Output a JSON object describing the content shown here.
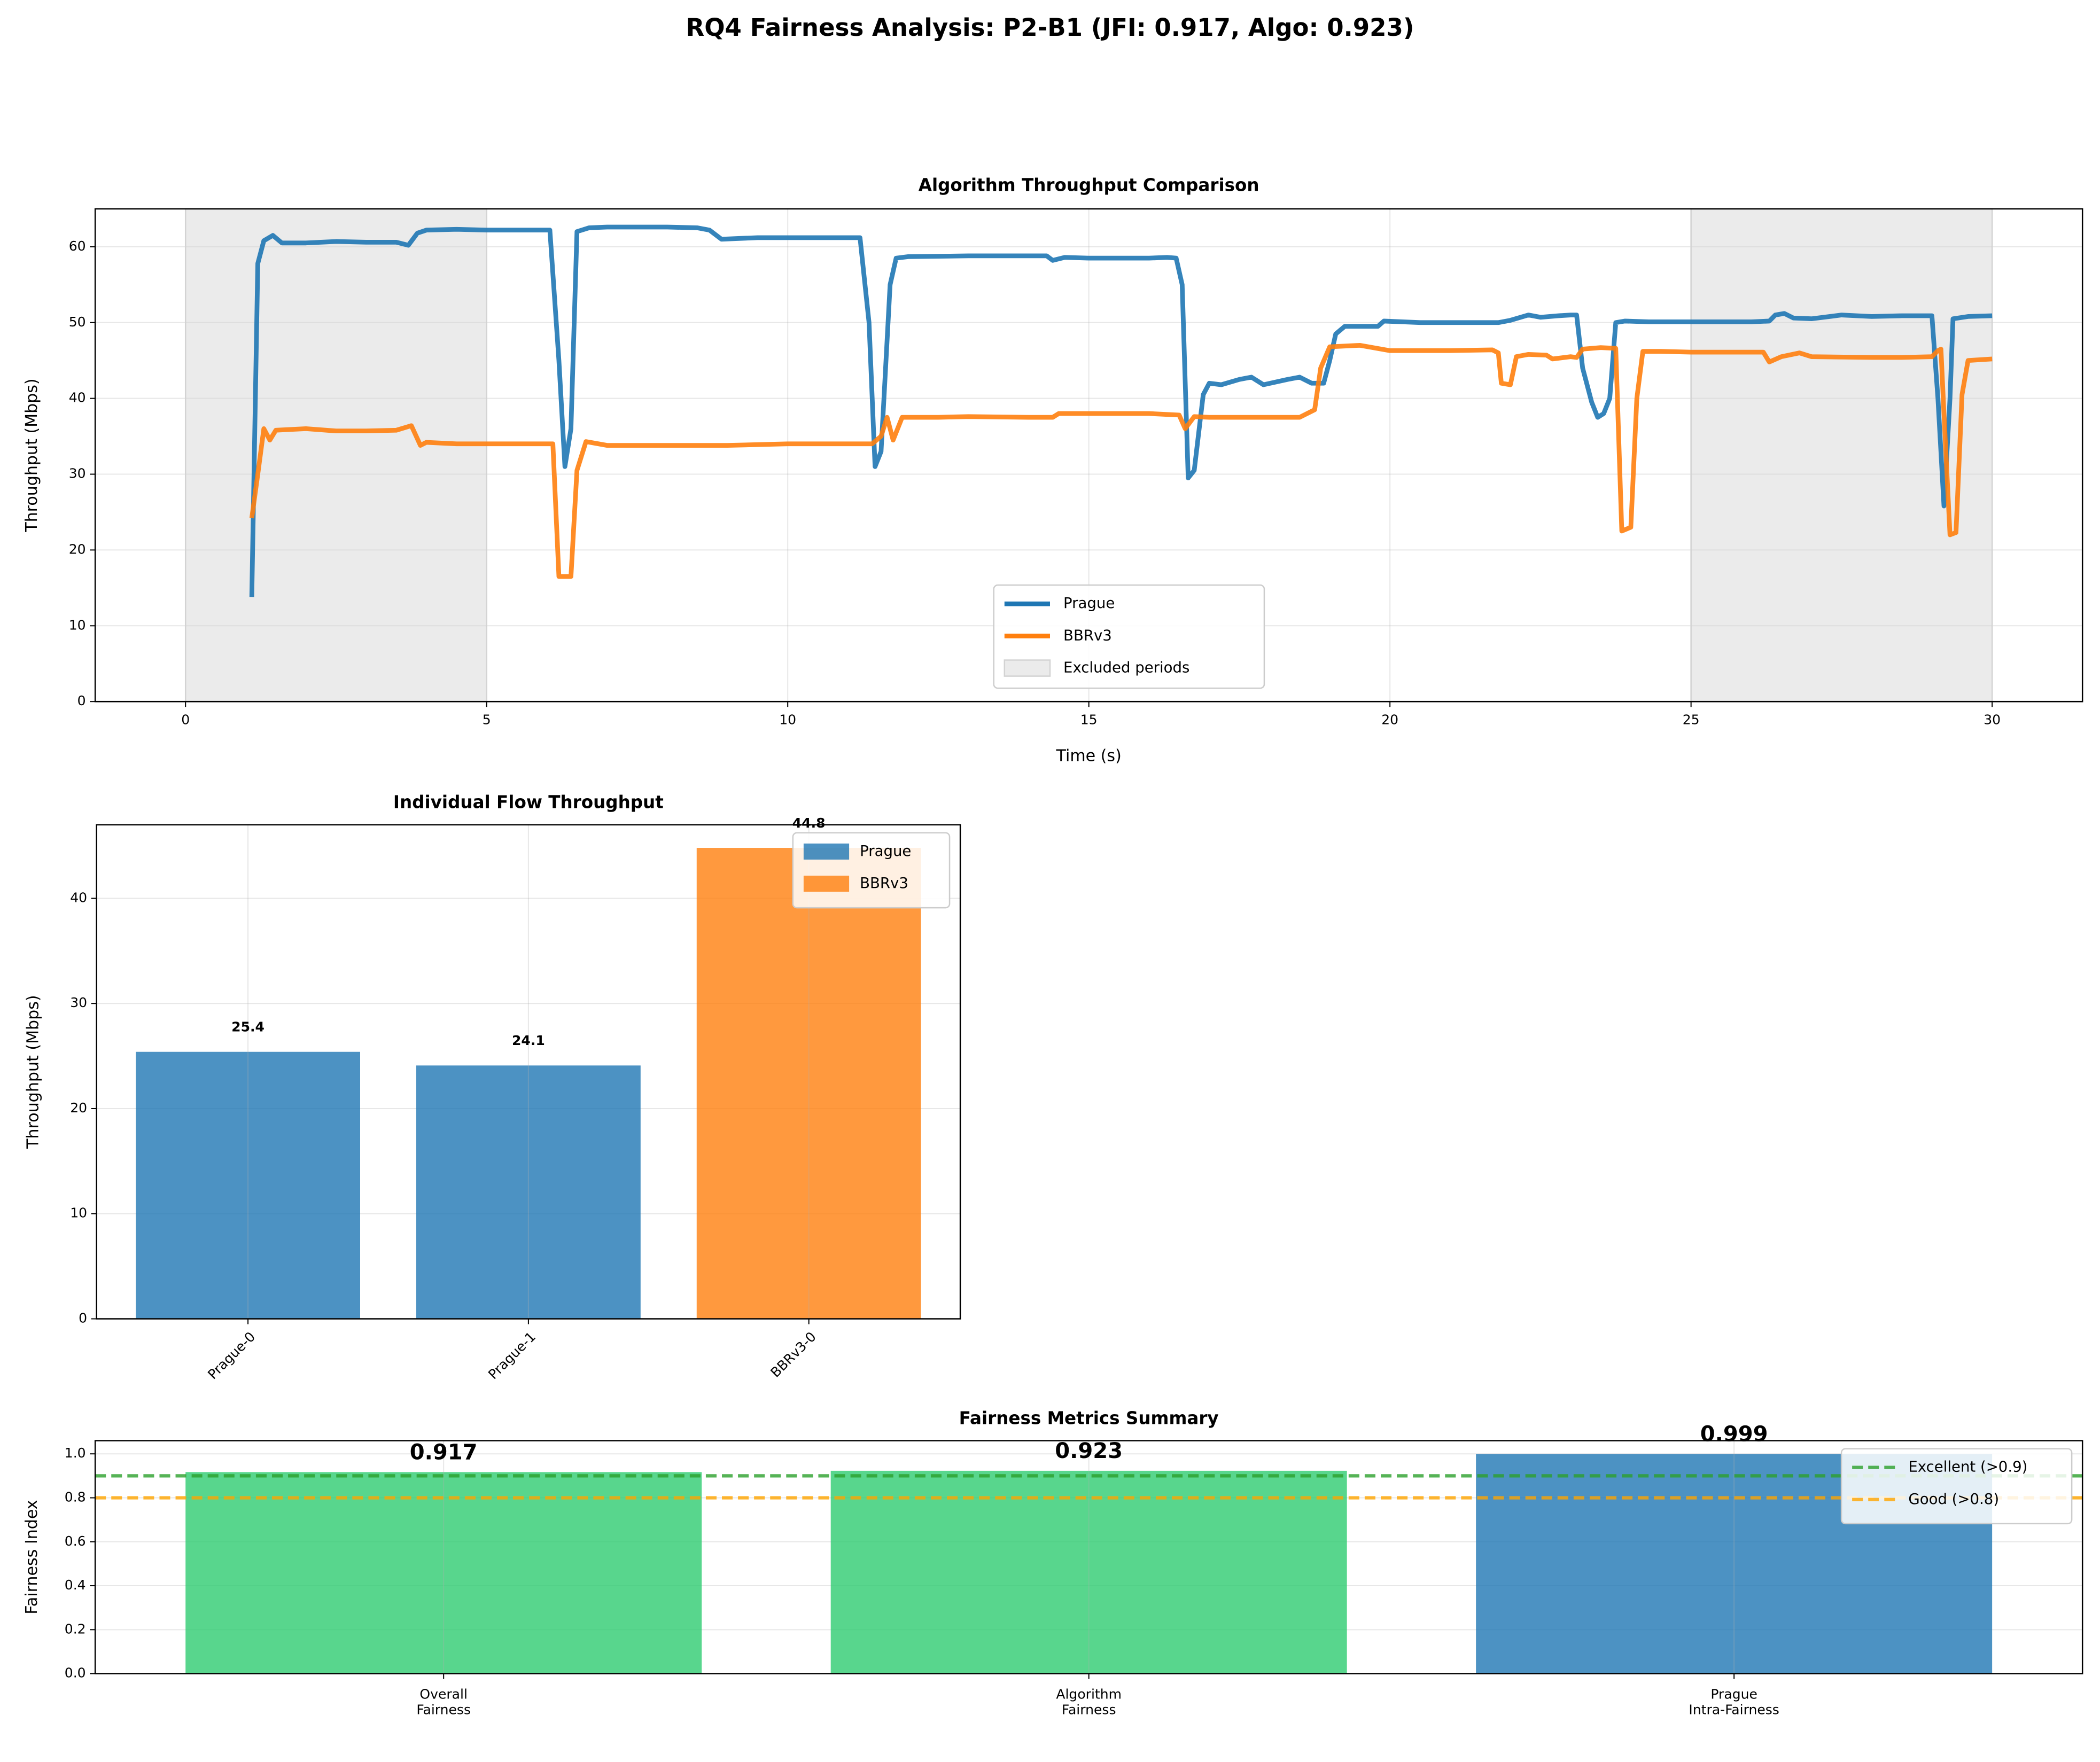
{
  "title": "RQ4 Fairness Analysis: P2-B1 (JFI: 0.917, Algo: 0.923)",
  "chart_data": [
    {
      "type": "line",
      "title": "Algorithm Throughput Comparison",
      "xlabel": "Time (s)",
      "ylabel": "Throughput (Mbps)",
      "xlim": [
        -1.5,
        31.5
      ],
      "ylim": [
        0,
        65
      ],
      "xticks": [
        0,
        5,
        10,
        15,
        20,
        25,
        30
      ],
      "yticks": [
        0,
        10,
        20,
        30,
        40,
        50,
        60
      ],
      "grid": true,
      "legend": "lower center",
      "spans": [
        {
          "start": 0,
          "end": 5
        },
        {
          "start": 25,
          "end": 30
        }
      ],
      "spans_label": "Excluded periods",
      "spans_color": "#d3d3d3",
      "series": [
        {
          "name": "Prague",
          "color": "#1f77b4",
          "x": [
            1.1,
            1.2,
            1.3,
            1.45,
            1.6,
            2,
            2.5,
            3,
            3.5,
            3.7,
            3.85,
            4,
            4.5,
            5,
            5.5,
            6,
            6.05,
            6.2,
            6.3,
            6.4,
            6.5,
            6.7,
            7,
            8,
            8.5,
            8.7,
            8.9,
            9.5,
            10,
            11,
            11.2,
            11.35,
            11.45,
            11.55,
            11.7,
            11.8,
            12,
            13,
            14,
            14.3,
            14.4,
            14.6,
            15,
            16,
            16.3,
            16.45,
            16.55,
            16.65,
            16.75,
            16.9,
            17,
            17.2,
            17.5,
            17.7,
            17.9,
            18.3,
            18.5,
            18.7,
            18.9,
            19,
            19.1,
            19.25,
            19.5,
            19.8,
            19.9,
            20.5,
            21,
            21.5,
            21.8,
            22,
            22.3,
            22.5,
            22.8,
            23,
            23.1,
            23.2,
            23.35,
            23.45,
            23.55,
            23.65,
            23.75,
            23.9,
            24.3,
            25,
            26,
            26.3,
            26.4,
            26.55,
            26.7,
            27,
            27.5,
            28,
            28.5,
            29,
            29.1,
            29.2,
            29.3,
            29.35,
            29.6,
            30
          ],
          "values": [
            13.8,
            57.8,
            60.8,
            61.5,
            60.5,
            60.5,
            60.7,
            60.6,
            60.6,
            60.2,
            61.8,
            62.2,
            62.3,
            62.2,
            62.2,
            62.2,
            62.2,
            45,
            31,
            36,
            62,
            62.5,
            62.6,
            62.6,
            62.5,
            62.2,
            61,
            61.2,
            61.2,
            61.2,
            61.2,
            50,
            31,
            33,
            55,
            58.5,
            58.7,
            58.8,
            58.8,
            58.8,
            58.2,
            58.6,
            58.5,
            58.5,
            58.6,
            58.5,
            55,
            29.5,
            30.5,
            40.5,
            42,
            41.8,
            42.5,
            42.8,
            41.8,
            42.5,
            42.8,
            42,
            42,
            45,
            48.5,
            49.5,
            49.5,
            49.5,
            50.2,
            50,
            50,
            50,
            50,
            50.3,
            51,
            50.7,
            50.9,
            51,
            51,
            44,
            39.5,
            37.5,
            38,
            40,
            50,
            50.2,
            50.1,
            50.1,
            50.1,
            50.2,
            51,
            51.2,
            50.6,
            50.5,
            51,
            50.8,
            50.9,
            50.9,
            40,
            25.8,
            40,
            50.5,
            50.8,
            50.9
          ]
        },
        {
          "name": "BBRv3",
          "color": "#ff7f0e",
          "x": [
            1.1,
            1.2,
            1.3,
            1.4,
            1.5,
            2,
            2.5,
            3,
            3.5,
            3.75,
            3.9,
            4,
            4.5,
            5,
            5.5,
            6,
            6.1,
            6.2,
            6.4,
            6.5,
            6.65,
            7,
            8,
            9,
            10,
            11,
            11.4,
            11.55,
            11.65,
            11.75,
            11.9,
            12.5,
            13,
            14,
            14.4,
            14.5,
            15,
            16,
            16.5,
            16.6,
            16.75,
            17,
            18,
            18.5,
            18.75,
            18.85,
            19,
            19.5,
            20,
            21,
            21.7,
            21.8,
            21.85,
            22,
            22.1,
            22.3,
            22.6,
            22.7,
            23,
            23.1,
            23.2,
            23.5,
            23.75,
            23.85,
            24,
            24.1,
            24.2,
            24.5,
            25,
            26,
            26.2,
            26.3,
            26.5,
            26.8,
            27,
            28,
            28.5,
            29,
            29.1,
            29.15,
            29.2,
            29.3,
            29.4,
            29.5,
            29.6,
            30
          ],
          "values": [
            24.2,
            30,
            36,
            34.5,
            35.8,
            36,
            35.7,
            35.7,
            35.8,
            36.4,
            33.8,
            34.2,
            34,
            34,
            34,
            34,
            34,
            16.5,
            16.5,
            30.5,
            34.3,
            33.8,
            33.8,
            33.8,
            34,
            34,
            34,
            35,
            37.5,
            34.5,
            37.5,
            37.5,
            37.6,
            37.5,
            37.5,
            38,
            38,
            38,
            37.8,
            36,
            37.6,
            37.5,
            37.5,
            37.5,
            38.5,
            44,
            46.8,
            47,
            46.3,
            46.3,
            46.4,
            46,
            42,
            41.8,
            45.5,
            45.8,
            45.7,
            45.2,
            45.5,
            45.4,
            46.5,
            46.7,
            46.6,
            22.5,
            23,
            40,
            46.2,
            46.2,
            46.1,
            46.1,
            46.1,
            44.8,
            45.5,
            46,
            45.5,
            45.4,
            45.4,
            45.5,
            46.3,
            46.5,
            38,
            22,
            22.3,
            40.5,
            45,
            45.2
          ]
        }
      ]
    },
    {
      "type": "bar",
      "title": "Individual Flow Throughput",
      "ylabel": "Throughput (Mbps)",
      "categories": [
        "Prague-0",
        "Prague-1",
        "BBRv3-0"
      ],
      "values": [
        25.4,
        24.1,
        44.8
      ],
      "colors": [
        "#1f77b4",
        "#1f77b4",
        "#ff7f0e"
      ],
      "ylim": [
        0,
        47
      ],
      "yticks": [
        0,
        10,
        20,
        30,
        40
      ],
      "grid": true,
      "legend_position": "upper right",
      "rotate_labels": true,
      "legend": [
        {
          "name": "Prague",
          "color": "#1f77b4"
        },
        {
          "name": "BBRv3",
          "color": "#ff7f0e"
        }
      ]
    },
    {
      "type": "bar",
      "title": "Fairness Metrics Summary",
      "ylabel": "Fairness Index",
      "categories": [
        "Overall\nFairness",
        "Algorithm\nFairness",
        "Prague\nIntra-Fairness"
      ],
      "values": [
        0.917,
        0.923,
        0.999
      ],
      "colors": [
        "#2ecc71",
        "#2ecc71",
        "#1f77b4"
      ],
      "ylim": [
        0,
        1.06
      ],
      "yticks": [
        {
          "value": 0,
          "label": "0.0"
        },
        0.2,
        0.4,
        0.6,
        0.8,
        {
          "value": 1,
          "label": "1.0"
        }
      ],
      "grid": true,
      "legend_position": "upper right",
      "hlines": [
        {
          "value": 0.9,
          "label": "Excellent (>0.9)",
          "color": "#2ca02c"
        },
        {
          "value": 0.8,
          "label": "Good (>0.8)",
          "color": "#ffa500"
        }
      ]
    }
  ]
}
